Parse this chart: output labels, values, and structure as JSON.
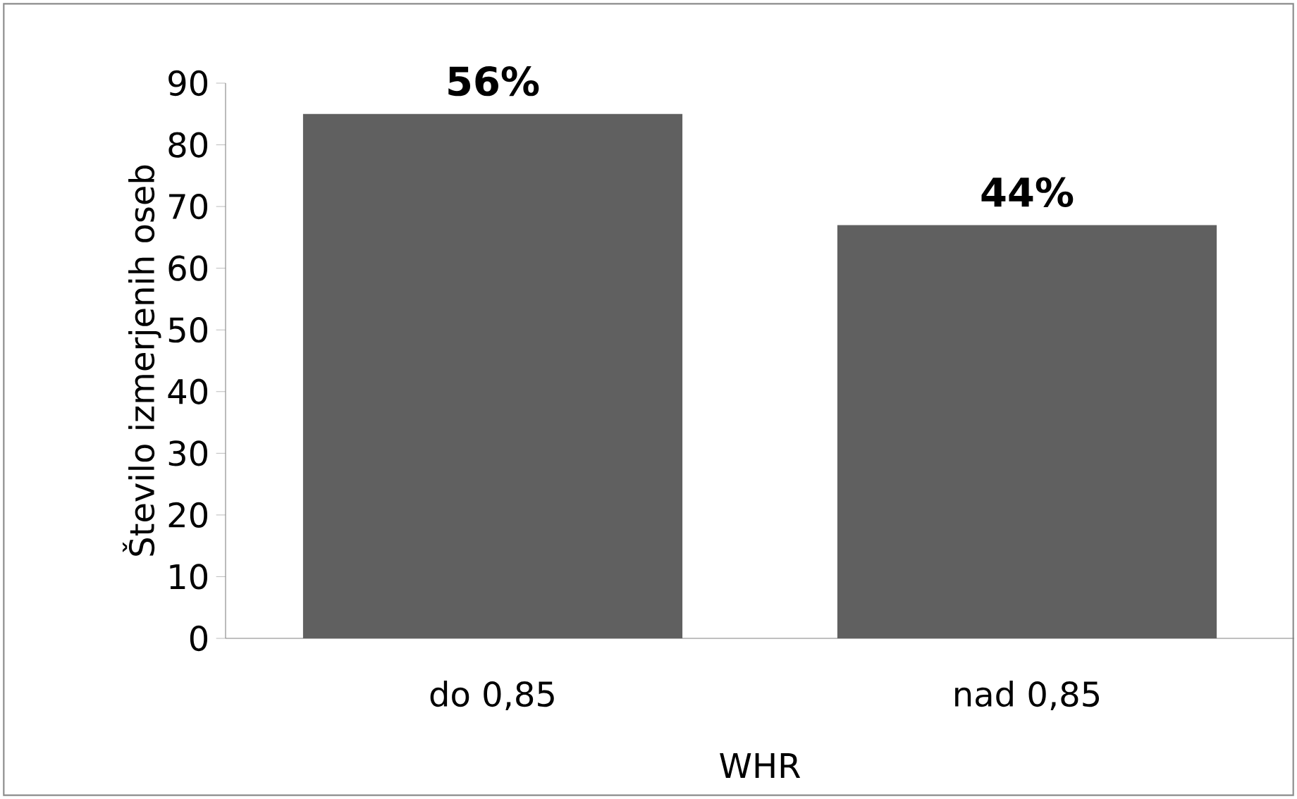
{
  "chart_data": {
    "type": "bar",
    "categories": [
      "do 0,85",
      "nad 0,85"
    ],
    "values": [
      85,
      67
    ],
    "annotations": [
      {
        "text": "56%",
        "x": "do 0,85",
        "y": 85
      },
      {
        "text": "44%",
        "x": "nad 0,85",
        "y": 67
      }
    ],
    "color": "#606060",
    "xlabel": "WHR",
    "ylabel": "Število izmerjenih oseb",
    "ylim": [
      0,
      90
    ],
    "yticks": [
      0,
      10,
      20,
      30,
      40,
      50,
      60,
      70,
      80,
      90
    ]
  }
}
